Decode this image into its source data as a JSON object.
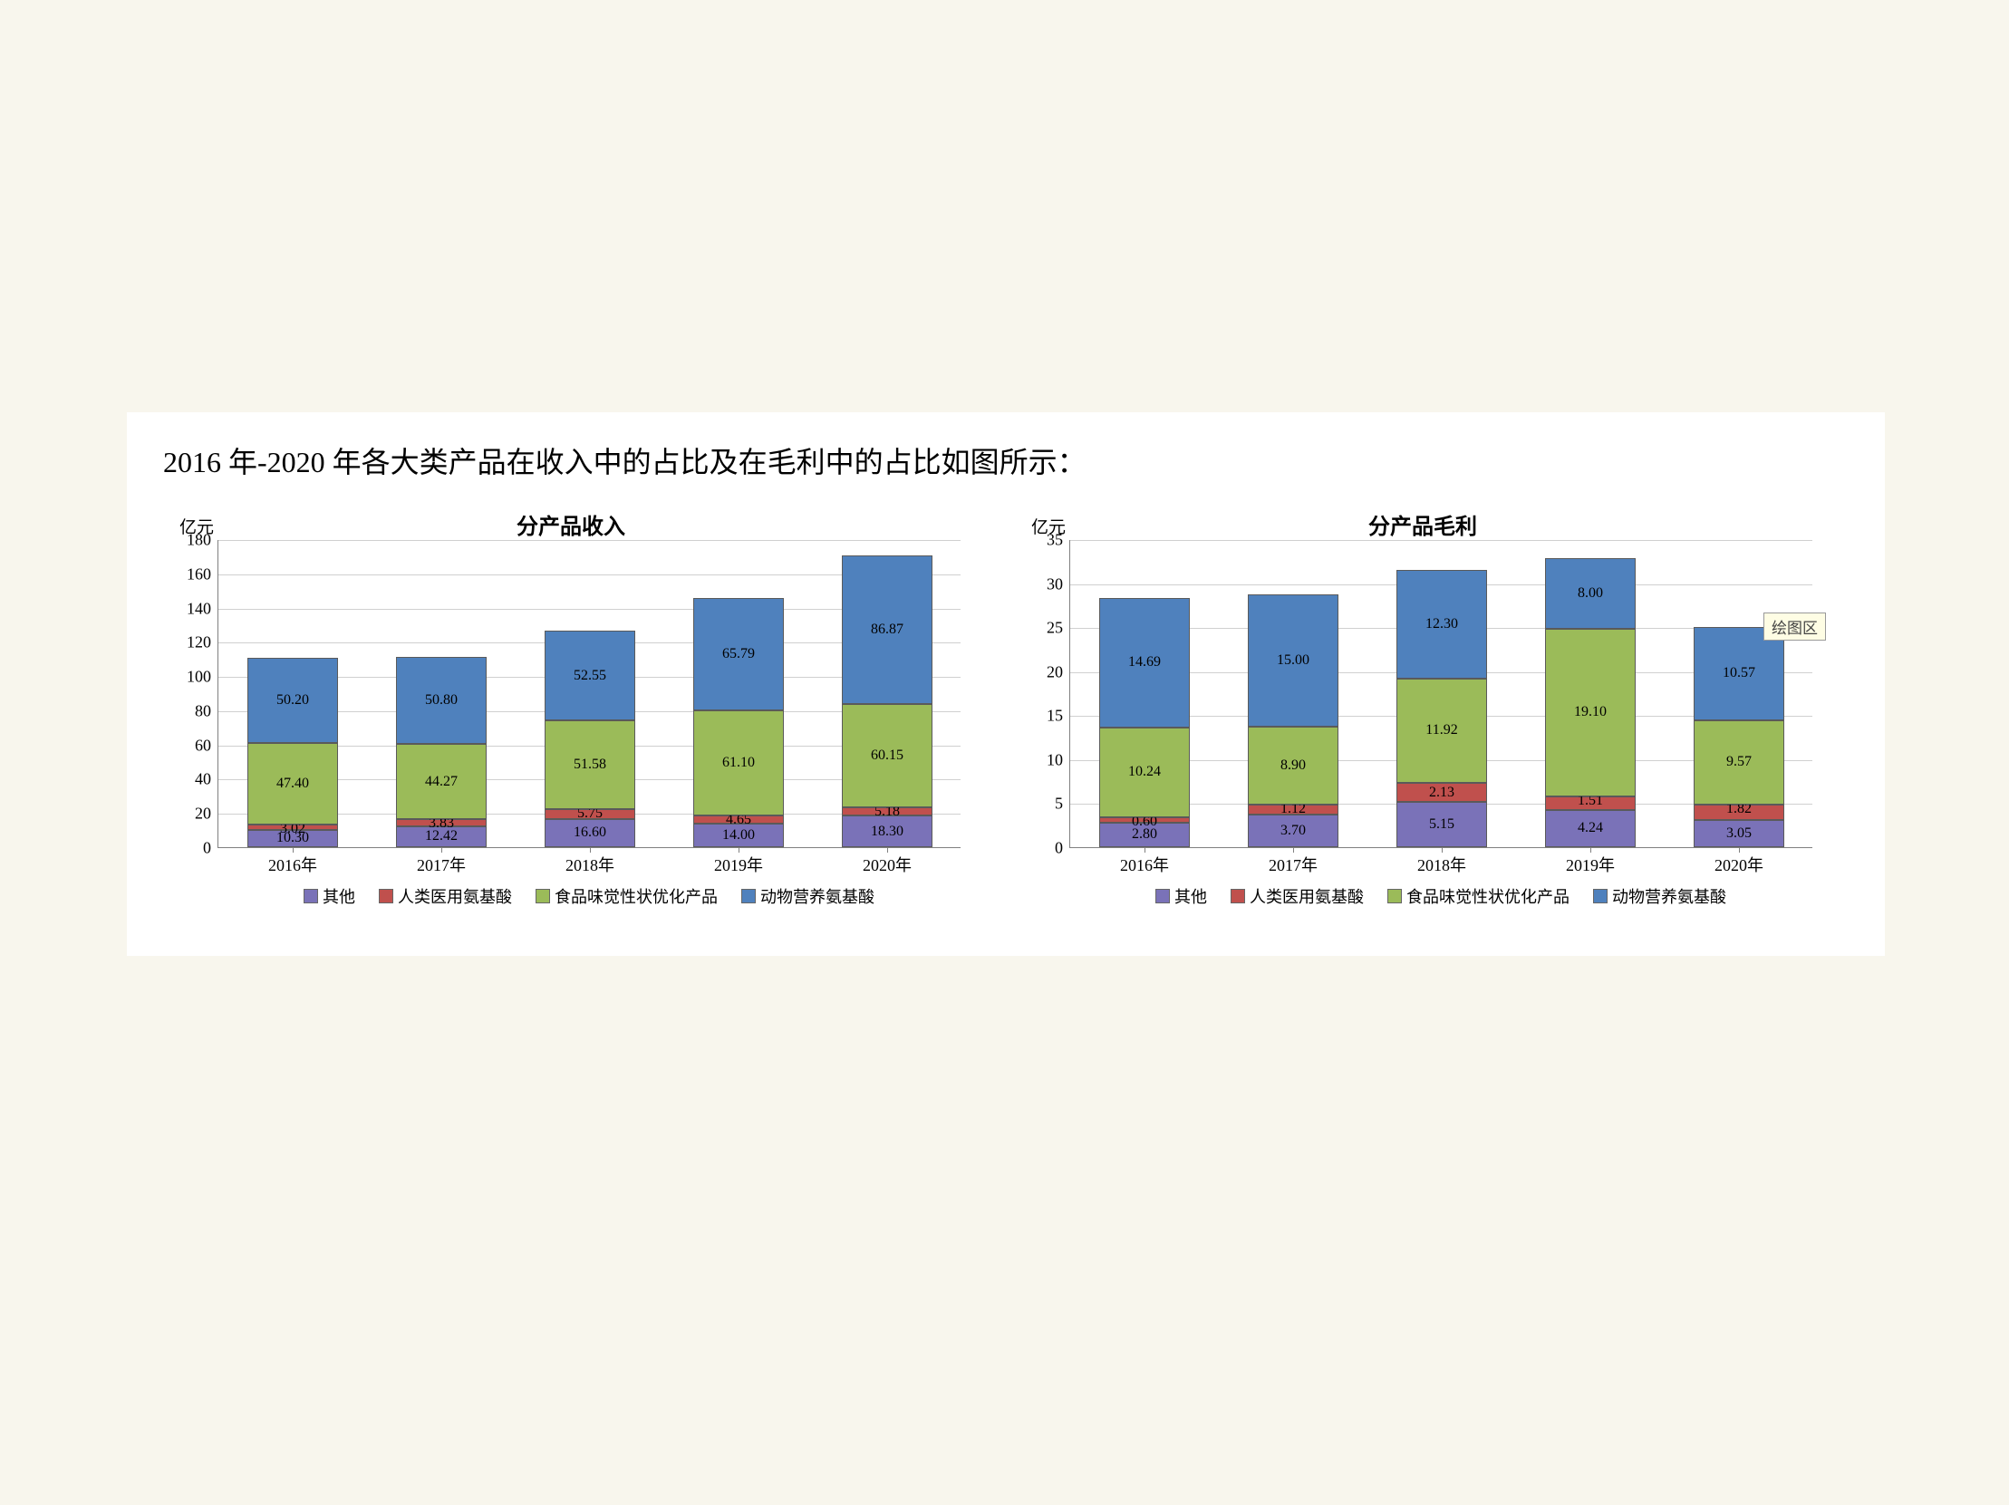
{
  "page": {
    "background_color": "#f8f6ed",
    "panel_background": "#ffffff"
  },
  "heading": "2016 年-2020 年各大类产品在收入中的占比及在毛利中的占比如图所示：",
  "series_colors": {
    "other": "#7a72b8",
    "medical": "#c0504d",
    "food": "#9bbb59",
    "animal": "#4f81bd"
  },
  "series_labels": {
    "other": "其他",
    "medical": "人类医用氨基酸",
    "food": "食品味觉性状优化产品",
    "animal": "动物营养氨基酸"
  },
  "grid_color": "#d0d0d0",
  "axis_color": "#808080",
  "axis_unit": "亿元",
  "chart_left": {
    "title": "分产品收入",
    "ylim": [
      0,
      180
    ],
    "ytick_step": 20,
    "categories": [
      "2016年",
      "2017年",
      "2018年",
      "2019年",
      "2020年"
    ],
    "bar_width_ratio": 0.6,
    "series_order": [
      "other",
      "medical",
      "food",
      "animal"
    ],
    "data": {
      "other": [
        10.3,
        12.42,
        16.6,
        14.0,
        18.3
      ],
      "medical": [
        3.02,
        3.83,
        5.75,
        4.65,
        5.18
      ],
      "food": [
        47.4,
        44.27,
        51.58,
        61.1,
        60.15
      ],
      "animal": [
        50.2,
        50.8,
        52.55,
        65.79,
        86.87
      ]
    },
    "labels": {
      "other": [
        "10.30",
        "12.42",
        "16.60",
        "14.00",
        "18.30"
      ],
      "medical": [
        "3.02",
        "3.83",
        "5.75",
        "4.65",
        "5.18"
      ],
      "food": [
        "47.40",
        "44.27",
        "51.58",
        "61.10",
        "60.15"
      ],
      "animal": [
        "50.20",
        "50.80",
        "52.55",
        "65.79",
        "86.87"
      ]
    }
  },
  "chart_right": {
    "title": "分产品毛利",
    "ylim": [
      0,
      35
    ],
    "ytick_step": 5,
    "categories": [
      "2016年",
      "2017年",
      "2018年",
      "2019年",
      "2020年"
    ],
    "bar_width_ratio": 0.6,
    "series_order": [
      "other",
      "medical",
      "food",
      "animal"
    ],
    "tooltip_text": "绘图区",
    "data": {
      "other": [
        2.8,
        3.7,
        5.15,
        4.24,
        3.05
      ],
      "medical": [
        0.6,
        1.12,
        2.13,
        1.51,
        1.82
      ],
      "food": [
        10.24,
        8.9,
        11.92,
        19.1,
        9.57
      ],
      "animal": [
        14.69,
        15.0,
        12.3,
        8.0,
        10.57
      ]
    },
    "labels": {
      "other": [
        "2.80",
        "3.70",
        "5.15",
        "4.24",
        "3.05"
      ],
      "medical": [
        "0.60",
        "1.12",
        "2.13",
        "1.51",
        "1.82"
      ],
      "food": [
        "10.24",
        "8.90",
        "11.92",
        "19.10",
        "9.57"
      ],
      "animal": [
        "14.69",
        "15.00",
        "12.30",
        "8.00",
        "10.57"
      ]
    }
  }
}
